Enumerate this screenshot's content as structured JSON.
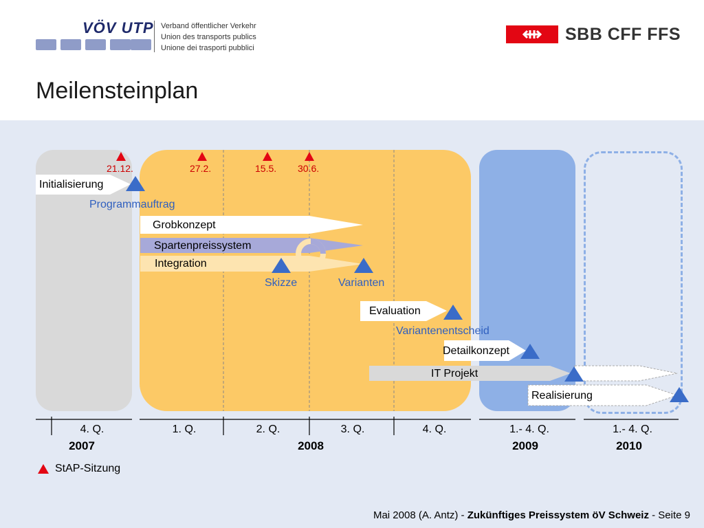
{
  "header": {
    "org_short": "VÖV UTP",
    "org_lines": [
      "Verband öffentlicher Verkehr",
      "Union des transports publics",
      "Unione dei trasporti pubblici"
    ],
    "sbb_text": "SBB CFF FFS",
    "title": "Meilensteinplan"
  },
  "colors": {
    "red": "#e30613",
    "blue": "#3a6cc8",
    "orange": "#fcc966",
    "grey": "#d9d9d9"
  },
  "stap_dates": [
    "21.12.",
    "27.2.",
    "15.5.",
    "30.6."
  ],
  "bars": {
    "initialisierung": "Initialisierung",
    "grobkonzept": "Grobkonzept",
    "spartenpreissystem": "Spartenpreissystem",
    "integration": "Integration",
    "evaluation": "Evaluation",
    "detailkonzept": "Detailkonzept",
    "it_projekt": "IT Projekt",
    "realisierung": "Realisierung"
  },
  "milestones": {
    "programmauftrag": "Programmauftrag",
    "skizze": "Skizze",
    "varianten": "Varianten",
    "variantenentscheid": "Variantenentscheid"
  },
  "quarters": [
    "4. Q.",
    "1. Q.",
    "2. Q.",
    "3. Q.",
    "4. Q.",
    "1.- 4. Q.",
    "1.- 4. Q."
  ],
  "years": [
    "2007",
    "2008",
    "2009",
    "2010"
  ],
  "legend": "StAP-Sitzung",
  "footer": {
    "prefix": "Mai 2008 (A. Antz) - ",
    "bold": "Zukünftiges Preissystem öV Schweiz",
    "suffix": " - Seite 9"
  }
}
